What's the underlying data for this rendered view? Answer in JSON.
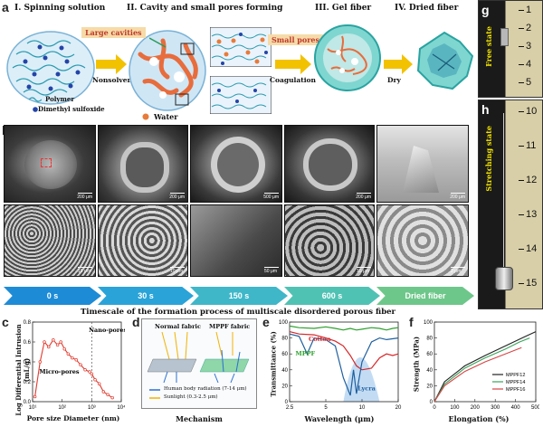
{
  "panel_a": {
    "letter": "a",
    "steps": [
      "I. Spinning solution",
      "II. Cavity and small pores forming",
      "III. Gel fiber",
      "IV. Dried fiber"
    ],
    "large_cavities": "Large cavities",
    "small_pores": "Small pores",
    "nonsolvent": "Nonsolvent",
    "coagulation": "Coagulation",
    "dry": "Dry",
    "legend_polymer": "Polymer",
    "legend_dmso": "Dimethyl sulfoxide",
    "legend_water": "Water"
  },
  "panel_b": {
    "letter": "b",
    "top_scales": [
      "200 μm",
      "200 μm",
      "500 μm",
      "200 μm",
      "200 μm"
    ],
    "bottom_scales": [
      "10 μm",
      "10 μm",
      "50 μm",
      "10 μm",
      "2 μm"
    ],
    "timeline": [
      "0 s",
      "30 s",
      "150 s",
      "600 s",
      "Dried fiber"
    ],
    "timeline_colors": [
      "#1e8bd6",
      "#2aa3d8",
      "#3fb7c9",
      "#50c2b4",
      "#6ec78a"
    ],
    "caption": "Timescale of the formation process of multiscale disordered porous fiber"
  },
  "panel_g": {
    "letter": "g",
    "label": "Free state",
    "ruler": [
      "1",
      "2",
      "3",
      "4",
      "5"
    ]
  },
  "panel_h": {
    "letter": "h",
    "label": "Stretching state",
    "ruler": [
      "10",
      "11",
      "12",
      "13",
      "14",
      "15"
    ]
  },
  "panel_c": {
    "letter": "c",
    "chart_data": {
      "type": "line",
      "xlabel": "Pore size Diameter (nm)",
      "ylabel": "Log Differential Intrusion (mL/g)",
      "x_ticks": [
        "10¹",
        "10²",
        "10³",
        "10⁴"
      ],
      "y_ticks": [
        "0.0",
        "0.2",
        "0.4",
        "0.6",
        "0.8"
      ],
      "ylim": [
        0,
        0.8
      ],
      "log_x": true,
      "x": [
        12,
        18,
        25,
        35,
        50,
        70,
        90,
        120,
        160,
        220,
        300,
        420,
        600,
        850,
        1000,
        1300,
        1800,
        2500,
        3500,
        5000
      ],
      "y": [
        0.05,
        0.4,
        0.6,
        0.55,
        0.62,
        0.57,
        0.6,
        0.53,
        0.48,
        0.44,
        0.42,
        0.37,
        0.32,
        0.3,
        0.28,
        0.22,
        0.18,
        0.1,
        0.07,
        0.04
      ],
      "annotations": [
        "Micro-pores",
        "Nano-pores"
      ]
    }
  },
  "panel_d": {
    "letter": "d",
    "normal": "Normal fabric",
    "mppf": "MPPF fabric",
    "legend1": "Human body radiation (7-14 μm)",
    "legend2": "Sunlight (0.3-2.5 μm)",
    "caption": "Mechanism"
  },
  "panel_e": {
    "letter": "e",
    "chart_data": {
      "type": "line",
      "xlabel": "Wavelength (μm)",
      "ylabel": "Transmittance (%)",
      "x_ticks": [
        "2.5",
        "5",
        "10",
        "20"
      ],
      "y_ticks": [
        "0",
        "20",
        "40",
        "60",
        "80",
        "100"
      ],
      "ylim": [
        0,
        100
      ],
      "series": [
        {
          "name": "Cotton",
          "color": "#d62728",
          "x": [
            2.5,
            3,
            4,
            5,
            6,
            7,
            8,
            9,
            10,
            12,
            14,
            16,
            18,
            20
          ],
          "y": [
            88,
            85,
            84,
            80,
            76,
            70,
            58,
            45,
            40,
            42,
            55,
            60,
            58,
            60
          ]
        },
        {
          "name": "MPPF",
          "color": "#2ca02c",
          "x": [
            2.5,
            3,
            4,
            5,
            6,
            7,
            8,
            9,
            10,
            12,
            14,
            16,
            18,
            20
          ],
          "y": [
            95,
            93,
            92,
            94,
            92,
            90,
            92,
            90,
            91,
            93,
            92,
            90,
            92,
            93
          ]
        },
        {
          "name": "Lycra",
          "color": "#1f5f9e",
          "x": [
            2.5,
            3,
            3.5,
            4,
            5,
            6,
            7,
            8,
            8.5,
            9,
            10,
            12,
            14,
            16,
            20
          ],
          "y": [
            85,
            82,
            60,
            80,
            78,
            70,
            30,
            8,
            40,
            10,
            50,
            75,
            80,
            78,
            80
          ]
        }
      ]
    }
  },
  "panel_f": {
    "letter": "f",
    "chart_data": {
      "type": "line",
      "xlabel": "Elongation (%)",
      "ylabel": "Strength (MPa)",
      "x_ticks": [
        "0",
        "100",
        "200",
        "300",
        "400",
        "500"
      ],
      "y_ticks": [
        "0",
        "20",
        "40",
        "60",
        "80",
        "100"
      ],
      "xlim": [
        0,
        520
      ],
      "ylim": [
        0,
        100
      ],
      "series": [
        {
          "name": "MPPF12",
          "color": "#222222",
          "x": [
            0,
            50,
            150,
            250,
            350,
            450,
            500
          ],
          "y": [
            0,
            25,
            45,
            58,
            70,
            82,
            88
          ]
        },
        {
          "name": "MPPF14",
          "color": "#3aa35a",
          "x": [
            0,
            50,
            150,
            250,
            350,
            420,
            470
          ],
          "y": [
            0,
            22,
            42,
            55,
            66,
            75,
            80
          ]
        },
        {
          "name": "MPPF16",
          "color": "#d64545",
          "x": [
            0,
            50,
            150,
            250,
            350,
            430
          ],
          "y": [
            0,
            20,
            38,
            50,
            60,
            68
          ]
        }
      ]
    }
  }
}
